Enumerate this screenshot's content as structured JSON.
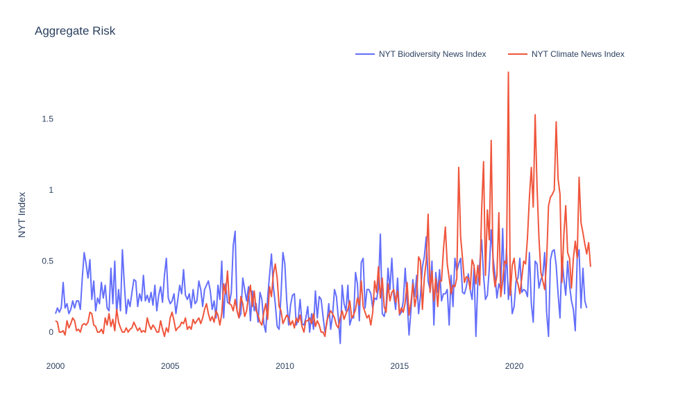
{
  "chart_data": {
    "type": "line",
    "title": "Aggregate Risk",
    "xlabel": "",
    "ylabel": "NYT Index",
    "xlim": [
      2000,
      2023.9
    ],
    "ylim": [
      -0.2,
      1.85
    ],
    "x_ticks": [
      2000,
      2005,
      2010,
      2015,
      2020
    ],
    "x_tick_labels": [
      "2000",
      "2005",
      "2010",
      "2015",
      "2020"
    ],
    "y_ticks": [
      0,
      0.5,
      1,
      1.5
    ],
    "y_tick_labels": [
      "0",
      "0.5",
      "1",
      "1.5"
    ],
    "legend_position": "top-right",
    "grid": false,
    "x_step_years": 0.0833,
    "series": [
      {
        "name": "NYT Biodiversity News Index",
        "color": "#636efa",
        "x_start": 2000,
        "values": [
          0.13,
          0.17,
          0.14,
          0.17,
          0.35,
          0.17,
          0.2,
          0.13,
          0.16,
          0.22,
          0.17,
          0.22,
          0.22,
          0.16,
          0.38,
          0.56,
          0.48,
          0.38,
          0.51,
          0.23,
          0.36,
          0.15,
          0.24,
          0.2,
          0.35,
          0.24,
          0.33,
          0.17,
          0.15,
          0.45,
          0.2,
          0.5,
          0.13,
          0.3,
          0.15,
          0.58,
          0.34,
          0.13,
          0.23,
          0.18,
          0.28,
          0.37,
          0.36,
          0.18,
          0.27,
          0.22,
          0.4,
          0.22,
          0.26,
          0.21,
          0.28,
          0.19,
          0.33,
          0.15,
          0.26,
          0.32,
          0.21,
          0.4,
          0.52,
          0.24,
          0.2,
          0.22,
          0.27,
          0.13,
          0.23,
          0.33,
          0.27,
          0.44,
          0.26,
          0.23,
          0.27,
          0.17,
          0.3,
          0.2,
          0.22,
          0.36,
          0.3,
          0.18,
          0.3,
          0.33,
          0.36,
          0.29,
          0.16,
          0.22,
          0.1,
          0.33,
          0.23,
          0.5,
          0.1,
          0.34,
          0.21,
          0.2,
          0.28,
          0.61,
          0.71,
          0.15,
          0.1,
          0.13,
          0.38,
          0.3,
          0.22,
          0.32,
          0.08,
          0.29,
          0.15,
          0.2,
          0.07,
          0.28,
          0.23,
          0.06,
          0.0,
          0.24,
          0.4,
          0.55,
          0.32,
          0.2,
          0.04,
          0.02,
          0.26,
          0.56,
          0.48,
          0.22,
          0.05,
          0.19,
          0.26,
          0.27,
          0.05,
          0.09,
          0.23,
          0.06,
          0.05,
          0.1,
          0.18,
          0.0,
          0.13,
          0.02,
          0.29,
          0.1,
          0.25,
          0.23,
          0.11,
          0.0,
          0.06,
          0.2,
          0.02,
          0.12,
          0.3,
          0.25,
          0.1,
          -0.08,
          0.33,
          0.2,
          0.15,
          0.33,
          0.05,
          0.1,
          0.1,
          0.42,
          0.34,
          0.08,
          0.49,
          0.52,
          0.17,
          0.3,
          0.3,
          0.27,
          0.17,
          0.24,
          0.23,
          0.31,
          0.69,
          0.13,
          0.11,
          0.18,
          0.45,
          0.3,
          0.52,
          0.26,
          0.16,
          0.38,
          0.12,
          0.14,
          0.22,
          0.45,
          0.22,
          -0.02,
          0.15,
          0.37,
          0.25,
          0.4,
          0.13,
          0.26,
          0.46,
          0.53,
          0.67,
          0.36,
          0.3,
          0.5,
          0.05,
          0.42,
          0.28,
          0.44,
          0.22,
          0.27,
          0.27,
          0.3,
          0.05,
          0.4,
          0.18,
          0.52,
          0.43,
          0.48,
          0.52,
          0.28,
          0.27,
          0.32,
          0.41,
          0.3,
          0.23,
          0.45,
          -0.03,
          0.35,
          0.48,
          0.65,
          0.4,
          0.23,
          0.26,
          0.45,
          0.72,
          0.52,
          0.4,
          0.24,
          0.34,
          0.3,
          0.73,
          0.27,
          0.59,
          0.23,
          0.38,
          0.13,
          0.18,
          0.36,
          0.38,
          0.52,
          0.28,
          0.3,
          0.29,
          0.25,
          0.56,
          0.2,
          0.07,
          0.5,
          0.48,
          0.31,
          0.37,
          0.4,
          0.56,
          0.14,
          -0.03,
          0.51,
          0.57,
          0.58,
          0.47,
          0.27,
          0.1,
          0.53,
          0.38,
          0.26,
          0.5,
          0.33,
          0.22,
          0.16,
          0.01,
          0.52,
          0.58,
          0.17,
          0.45,
          0.22,
          0.17
        ]
      },
      {
        "name": "NYT Climate News Index",
        "color": "#ef553b",
        "x_start": 2000,
        "values": [
          0.08,
          0.07,
          0.0,
          0.0,
          0.01,
          -0.02,
          0.08,
          0.03,
          0.06,
          0.1,
          0.08,
          0.01,
          0.02,
          0.0,
          0.05,
          0.06,
          0.05,
          0.07,
          0.14,
          0.13,
          0.05,
          0.04,
          0.0,
          0.0,
          0.02,
          -0.01,
          0.1,
          0.05,
          0.13,
          0.04,
          0.09,
          0.01,
          0.16,
          0.07,
          0.03,
          0.0,
          0.0,
          0.03,
          0.0,
          0.02,
          0.03,
          0.07,
          0.04,
          0.01,
          0.03,
          0.0,
          0.01,
          0.0,
          0.1,
          0.05,
          0.02,
          0.05,
          0.03,
          0.0,
          0.0,
          0.08,
          0.02,
          -0.03,
          0.03,
          0.0,
          0.1,
          0.14,
          0.08,
          0.01,
          0.03,
          0.04,
          0.07,
          0.06,
          0.1,
          0.02,
          0.04,
          0.02,
          0.09,
          0.06,
          0.08,
          0.1,
          0.06,
          0.1,
          0.16,
          0.2,
          0.13,
          0.08,
          0.11,
          0.07,
          0.15,
          0.12,
          0.05,
          0.13,
          0.34,
          0.27,
          0.43,
          0.2,
          0.19,
          0.15,
          0.23,
          0.15,
          0.1,
          0.25,
          0.2,
          0.11,
          0.15,
          0.25,
          0.33,
          0.18,
          0.29,
          0.15,
          0.12,
          0.07,
          0.05,
          0.14,
          0.2,
          0.09,
          0.32,
          0.25,
          0.41,
          0.48,
          0.38,
          0.18,
          0.15,
          0.06,
          0.09,
          0.12,
          0.1,
          0.05,
          0.08,
          0.03,
          0.1,
          0.07,
          0.12,
          0.04,
          0.0,
          0.08,
          0.08,
          0.1,
          0.06,
          0.13,
          0.04,
          0.08,
          0.05,
          0.0,
          0.0,
          -0.03,
          0.08,
          0.12,
          0.15,
          0.13,
          0.1,
          0.05,
          0.03,
          0.1,
          0.15,
          0.09,
          0.13,
          0.16,
          0.22,
          0.1,
          0.12,
          0.16,
          0.24,
          0.19,
          0.36,
          0.18,
          0.14,
          0.1,
          0.12,
          0.05,
          0.14,
          0.36,
          0.28,
          0.46,
          0.24,
          0.38,
          0.18,
          0.14,
          0.34,
          0.22,
          0.28,
          0.3,
          0.21,
          0.29,
          0.13,
          0.17,
          0.14,
          0.21,
          0.35,
          0.12,
          0.21,
          0.34,
          0.18,
          0.26,
          0.53,
          0.5,
          0.16,
          0.38,
          0.5,
          0.83,
          0.28,
          0.43,
          0.22,
          0.38,
          0.18,
          0.36,
          0.36,
          0.58,
          0.74,
          0.48,
          0.38,
          0.27,
          0.33,
          0.32,
          0.38,
          1.16,
          0.67,
          0.52,
          0.35,
          0.39,
          0.38,
          0.3,
          0.51,
          0.47,
          0.34,
          0.47,
          0.33,
          0.86,
          1.2,
          0.4,
          0.86,
          0.65,
          1.35,
          0.44,
          0.32,
          0.4,
          0.84,
          0.25,
          0.36,
          0.5,
          0.48,
          1.83,
          0.26,
          0.47,
          0.52,
          0.38,
          0.34,
          0.27,
          0.38,
          0.5,
          0.48,
          0.67,
          0.95,
          1.16,
          0.88,
          1.53,
          1.02,
          0.66,
          0.42,
          0.36,
          0.3,
          0.5,
          0.89,
          0.95,
          0.97,
          1.0,
          1.48,
          1.08,
          0.97,
          0.35,
          0.68,
          0.89,
          0.56,
          0.52,
          0.31,
          0.52,
          0.64,
          0.52,
          1.09,
          0.77,
          0.7,
          0.62,
          0.55,
          0.63,
          0.46
        ]
      }
    ]
  }
}
